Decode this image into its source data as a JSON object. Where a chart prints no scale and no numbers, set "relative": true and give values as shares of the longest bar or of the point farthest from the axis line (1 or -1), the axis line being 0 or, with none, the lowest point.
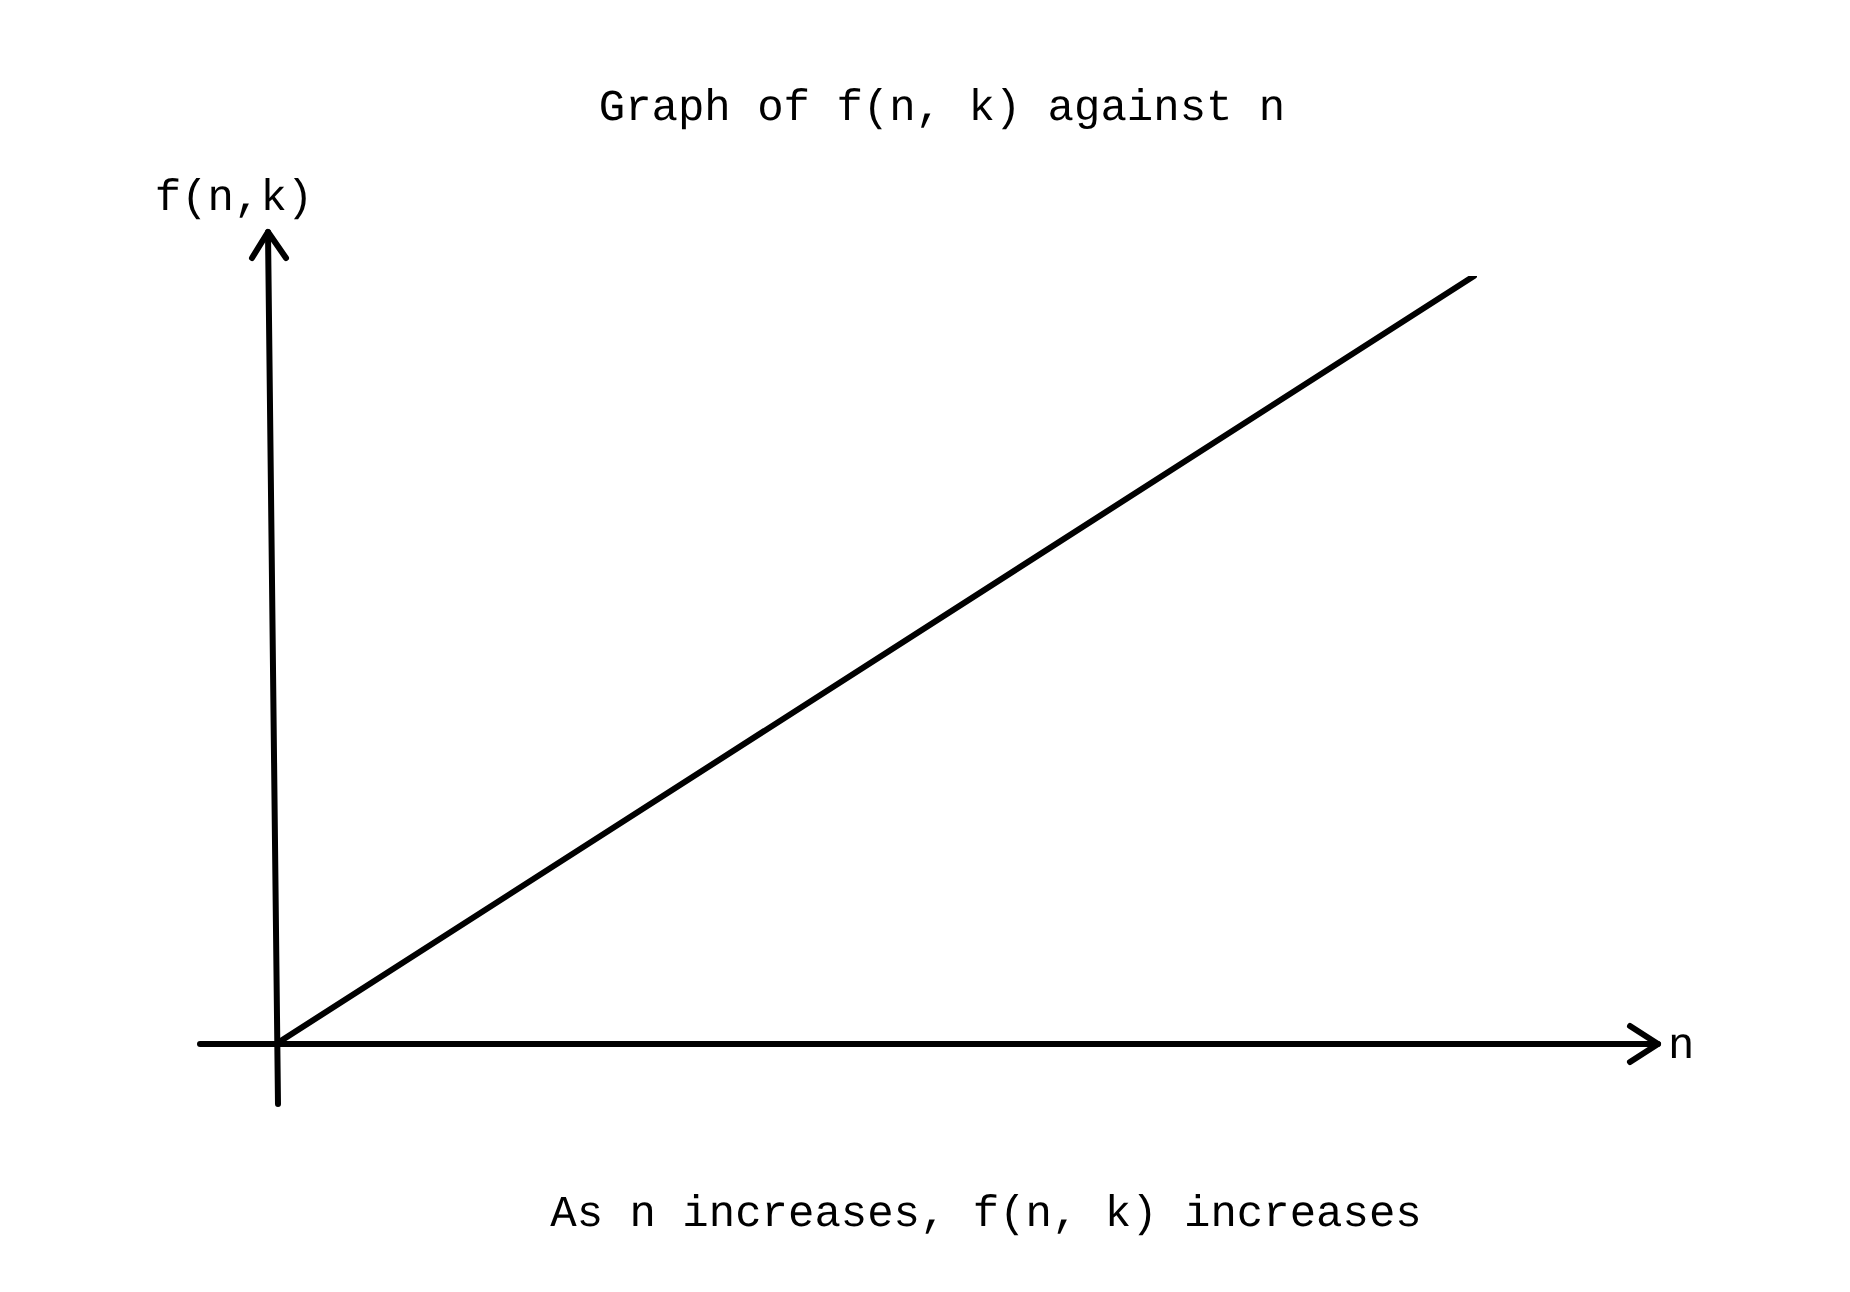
{
  "chart_data": {
    "type": "line",
    "title": "Graph of f(n, k) against n",
    "xlabel": "n",
    "ylabel": "f(n,k)",
    "relative": true,
    "categories": [
      null,
      null
    ],
    "color": "#000000",
    "values": [
      0,
      1
    ],
    "marker": "none",
    "annotations": [
      "As n increases, f(n, k) increases"
    ]
  }
}
